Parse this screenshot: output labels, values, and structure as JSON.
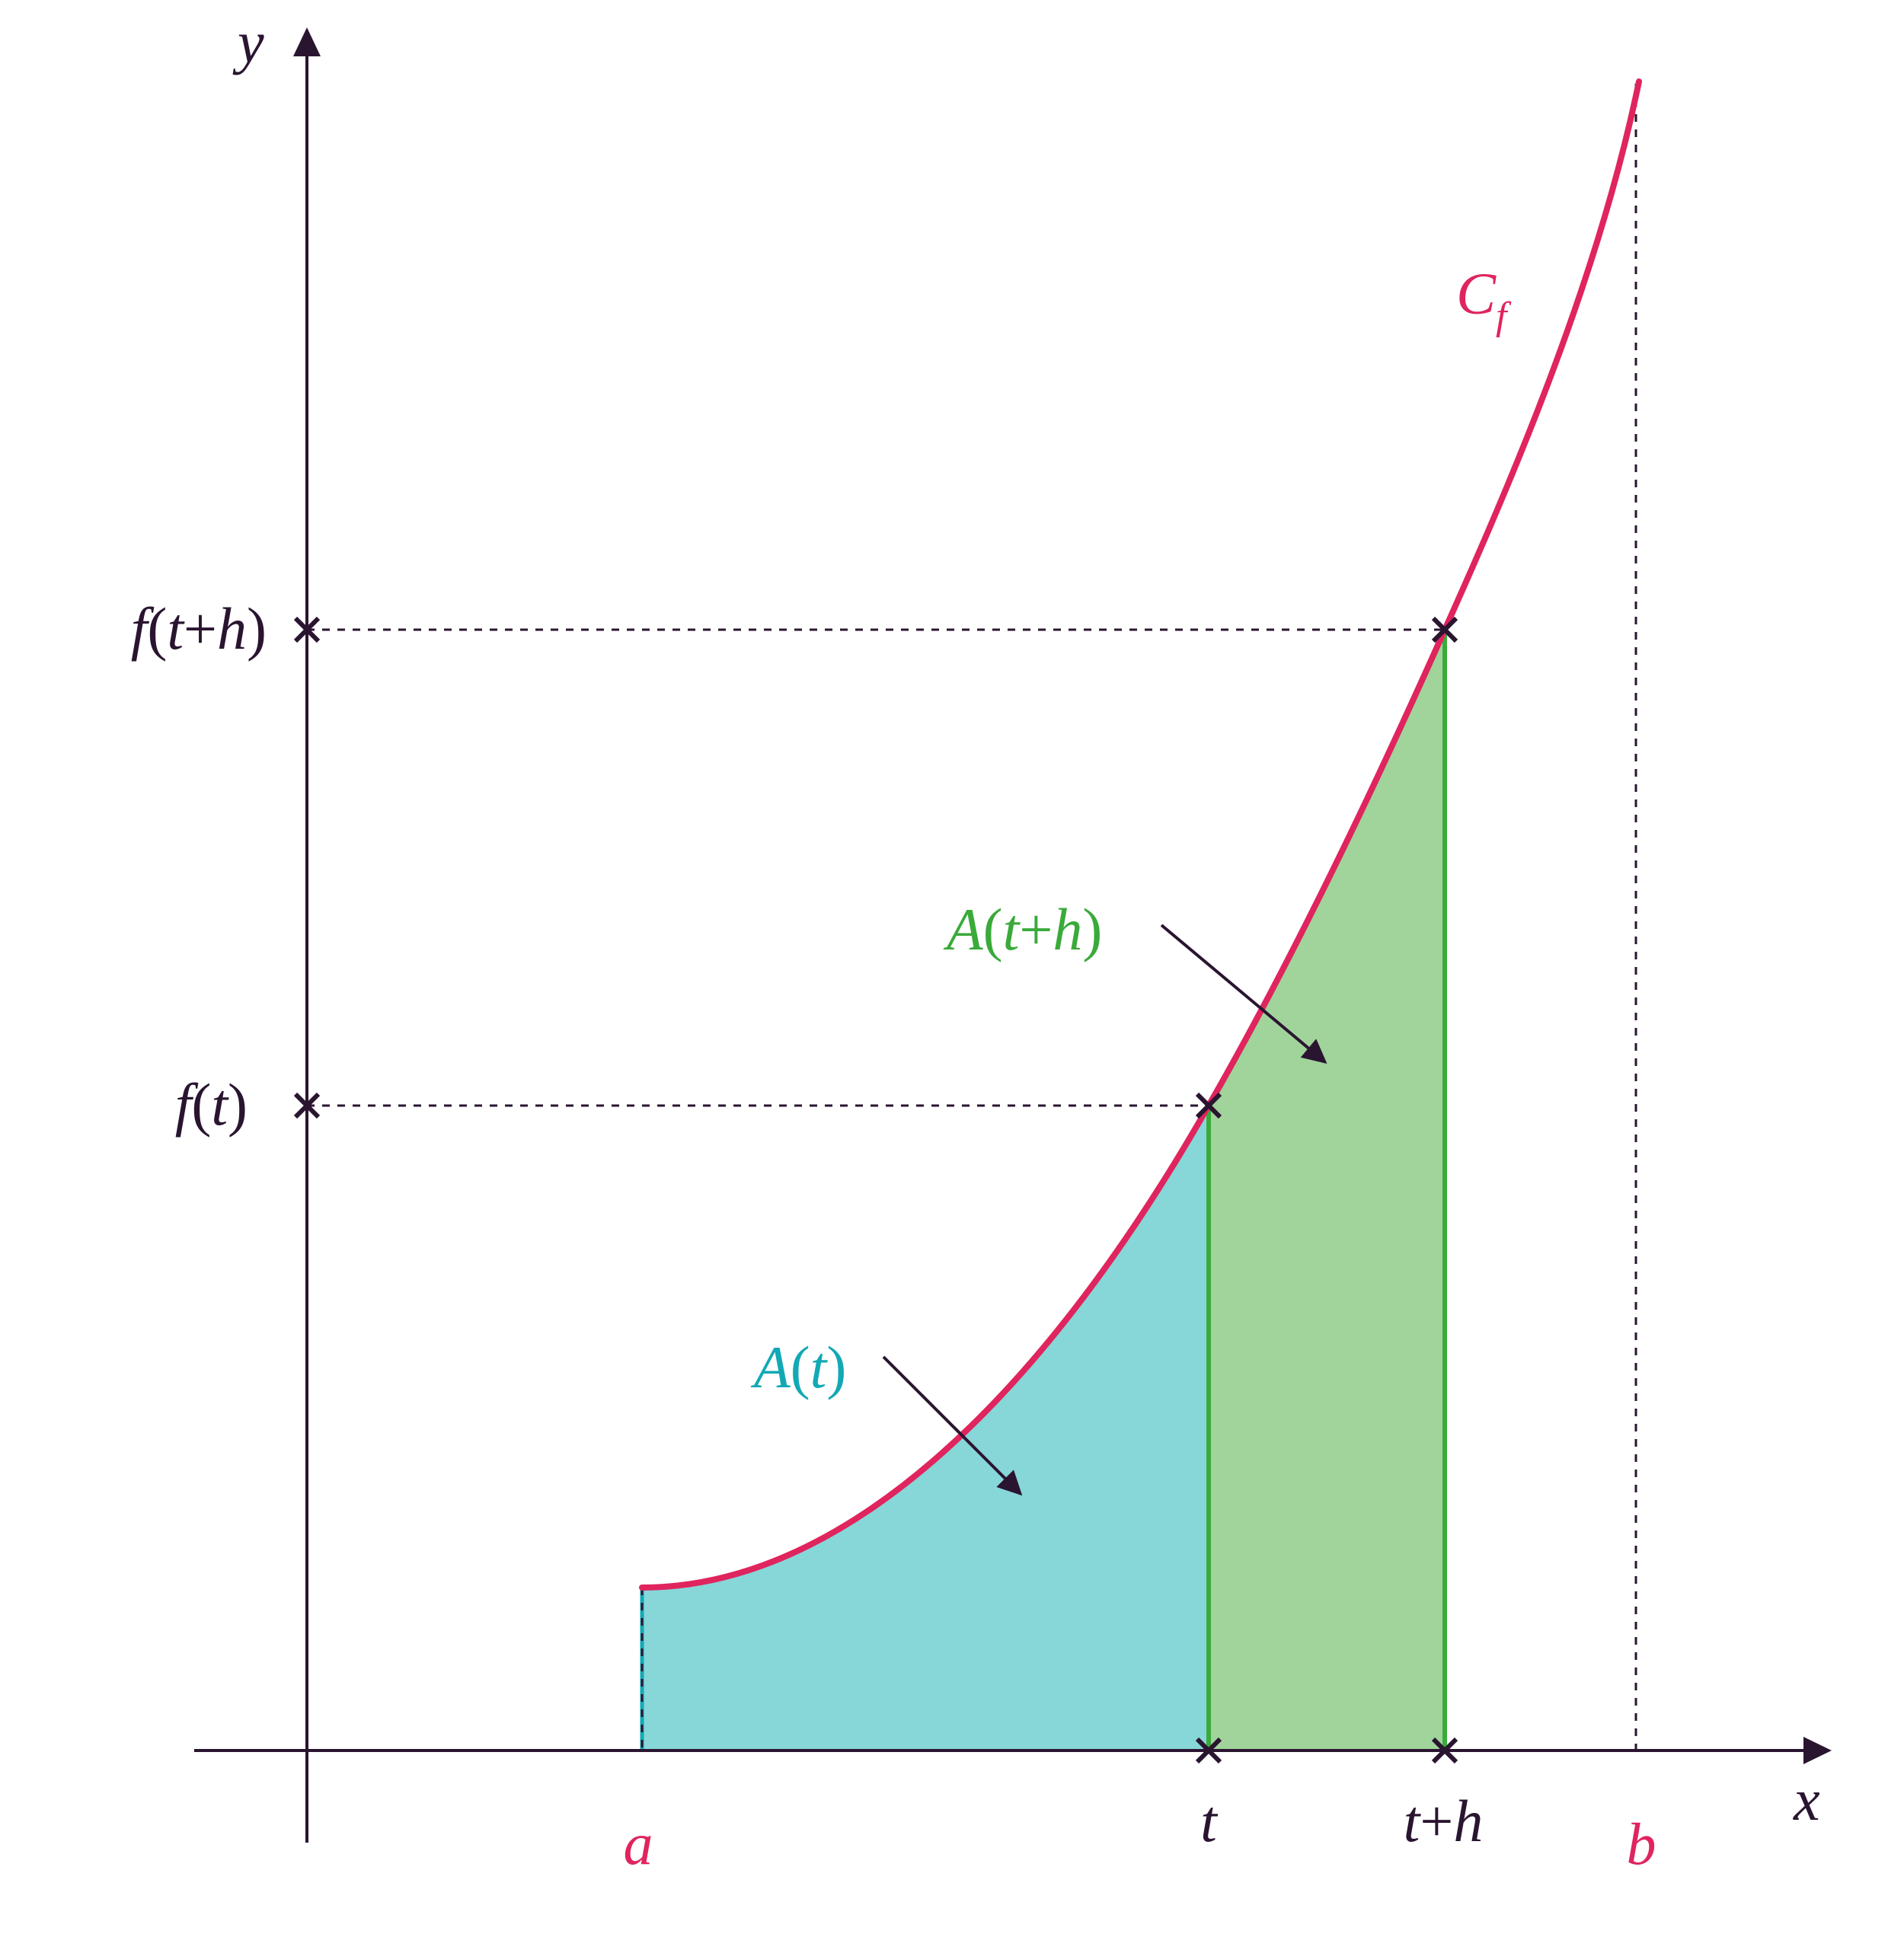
{
  "labels": {
    "y_axis": "y",
    "x_axis": "x",
    "a": "a",
    "b": "b",
    "t": "t",
    "t_plus_h": {
      "t": "t",
      "plus": "+",
      "h": "h"
    },
    "f_t": {
      "f": "f",
      "open": "(",
      "t": "t",
      "close": ")"
    },
    "f_t_plus_h": {
      "f": "f",
      "open": "(",
      "t": "t",
      "plus": "+",
      "h": "h",
      "close": ")"
    },
    "curve": {
      "C": "C",
      "sub": "f"
    },
    "area_t": {
      "A": "A",
      "open": "(",
      "t": "t",
      "close": ")"
    },
    "area_t_plus_h": {
      "A": "A",
      "open": "(",
      "t": "t",
      "plus": "+",
      "h": "h",
      "close": ")"
    }
  },
  "colors": {
    "axis": "#2a1530",
    "curve": "#e0245e",
    "area_t": "#87d6d8",
    "area_t_label": "#12a9b4",
    "area_h": "#a0d49b",
    "area_h_label": "#3aaa3a",
    "green_line": "#3aaa3a",
    "text": "#2a1530"
  }
}
